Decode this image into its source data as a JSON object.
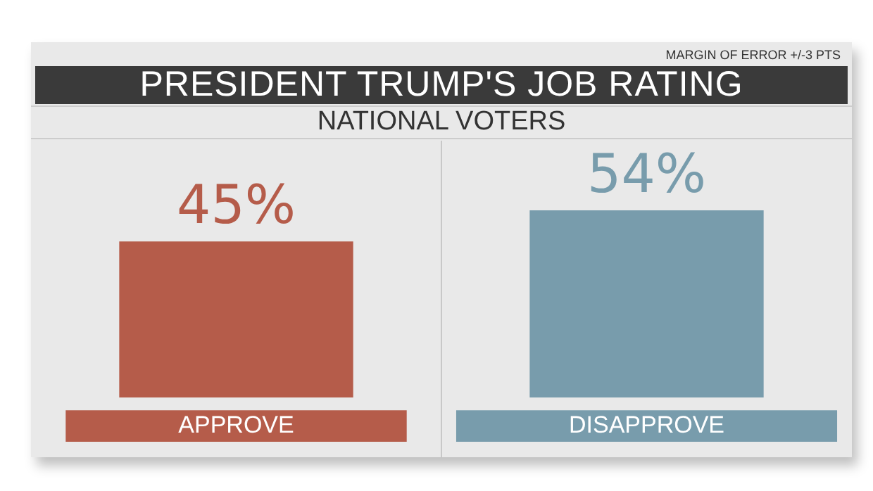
{
  "chart_data": {
    "type": "bar",
    "title": "PRESIDENT TRUMP'S JOB RATING",
    "subtitle": "NATIONAL VOTERS",
    "annotations": [
      "MARGIN OF ERROR +/-3 PTS"
    ],
    "categories": [
      "APPROVE",
      "DISAPPROVE"
    ],
    "values": [
      45,
      54
    ],
    "colors": [
      "#b55c4a",
      "#789cac"
    ],
    "value_labels": [
      "45%",
      "54%"
    ],
    "legend": false,
    "grid": false
  }
}
